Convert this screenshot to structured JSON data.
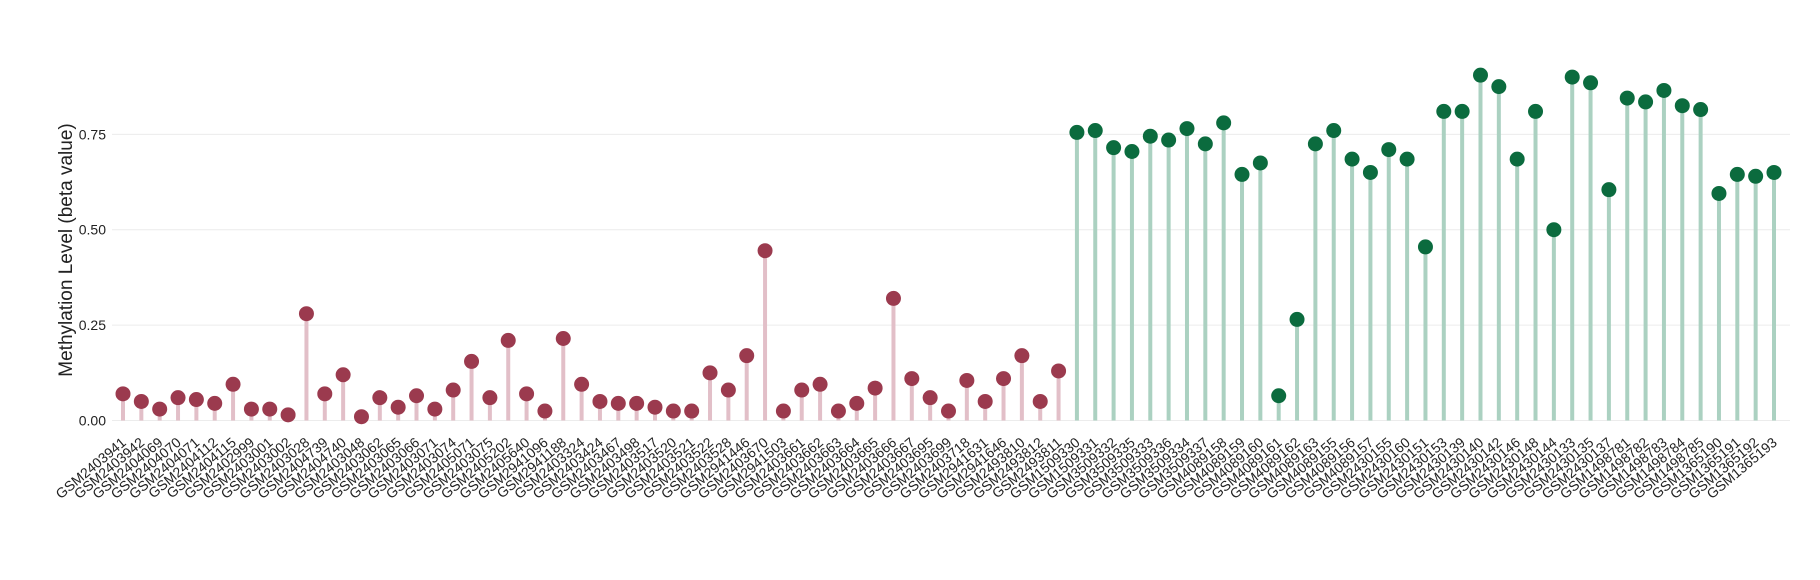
{
  "chart_data": {
    "type": "lollipop",
    "ylabel": "Methylation Level (beta value)",
    "ylim": [
      -0.03,
      0.95
    ],
    "yticks": [
      {
        "value": 0,
        "label": "0.00"
      },
      {
        "value": 0.25,
        "label": "0.25"
      },
      {
        "value": 0.5,
        "label": "0.50"
      },
      {
        "value": 0.75,
        "label": "0.75"
      }
    ],
    "grid": true,
    "series": [
      {
        "color": "#9b3a4e",
        "stem_color": "#e2bfc8",
        "categories": [
          "GSM2403941",
          "GSM2403942",
          "GSM2404069",
          "GSM2404070",
          "GSM2404071",
          "GSM2404112",
          "GSM2404115",
          "GSM2402999",
          "GSM2403001",
          "GSM2403002",
          "GSM2403028",
          "GSM2404739",
          "GSM2404740",
          "GSM2403048",
          "GSM2403062",
          "GSM2403065",
          "GSM2403066",
          "GSM2403071",
          "GSM2403074",
          "GSM2405071",
          "GSM2403075",
          "GSM2405202",
          "GSM2405640",
          "GSM2941096",
          "GSM2941188",
          "GSM2403324",
          "GSM2403424",
          "GSM2403467",
          "GSM2403498",
          "GSM2403517",
          "GSM2403520",
          "GSM2403521",
          "GSM2403522",
          "GSM2403528",
          "GSM2941446",
          "GSM2403670",
          "GSM2941503",
          "GSM2403661",
          "GSM2403662",
          "GSM2403663",
          "GSM2403664",
          "GSM2403665",
          "GSM2403666",
          "GSM2403667",
          "GSM2403695",
          "GSM2403699",
          "GSM2403718",
          "GSM2941631",
          "GSM2941646",
          "GSM2493810",
          "GSM2493812",
          "GSM2493811"
        ],
        "values": [
          0.07,
          0.05,
          0.03,
          0.06,
          0.055,
          0.045,
          0.095,
          0.03,
          0.03,
          0.015,
          0.28,
          0.07,
          0.12,
          0.01,
          0.06,
          0.035,
          0.065,
          0.03,
          0.08,
          0.155,
          0.06,
          0.21,
          0.07,
          0.025,
          0.215,
          0.095,
          0.05,
          0.045,
          0.045,
          0.035,
          0.025,
          0.025,
          0.125,
          0.08,
          0.17,
          0.445,
          0.025,
          0.08,
          0.095,
          0.025,
          0.045,
          0.085,
          0.32,
          0.11,
          0.06,
          0.025,
          0.105,
          0.05,
          0.11,
          0.17,
          0.05,
          0.13
        ]
      },
      {
        "color": "#0b6b3e",
        "stem_color": "#abd1c1",
        "categories": [
          "GSM1509330",
          "GSM1509331",
          "GSM3509332",
          "GSM3509335",
          "GSM3509333",
          "GSM3509336",
          "GSM3509334",
          "GSM3509337",
          "GSM4089158",
          "GSM4089159",
          "GSM4089160",
          "GSM4089161",
          "GSM4089162",
          "GSM4089163",
          "GSM4089155",
          "GSM4089156",
          "GSM4089157",
          "GSM2430155",
          "GSM2430160",
          "GSM2430151",
          "GSM2430153",
          "GSM2430139",
          "GSM2430140",
          "GSM2430142",
          "GSM2430146",
          "GSM2430148",
          "GSM2430144",
          "GSM2430133",
          "GSM2430135",
          "GSM2430137",
          "GSM1498781",
          "GSM1498782",
          "GSM1498783",
          "GSM1498784",
          "GSM1498785",
          "GSM1365190",
          "GSM1365191",
          "GSM1365192",
          "GSM1365193"
        ],
        "values": [
          0.755,
          0.76,
          0.715,
          0.705,
          0.745,
          0.735,
          0.765,
          0.725,
          0.78,
          0.645,
          0.675,
          0.065,
          0.265,
          0.725,
          0.76,
          0.685,
          0.65,
          0.71,
          0.685,
          0.455,
          0.81,
          0.81,
          0.905,
          0.875,
          0.685,
          0.81,
          0.5,
          0.9,
          0.885,
          0.605,
          0.845,
          0.835,
          0.865,
          0.825,
          0.815,
          0.595,
          0.645,
          0.64,
          0.65
        ]
      }
    ]
  }
}
